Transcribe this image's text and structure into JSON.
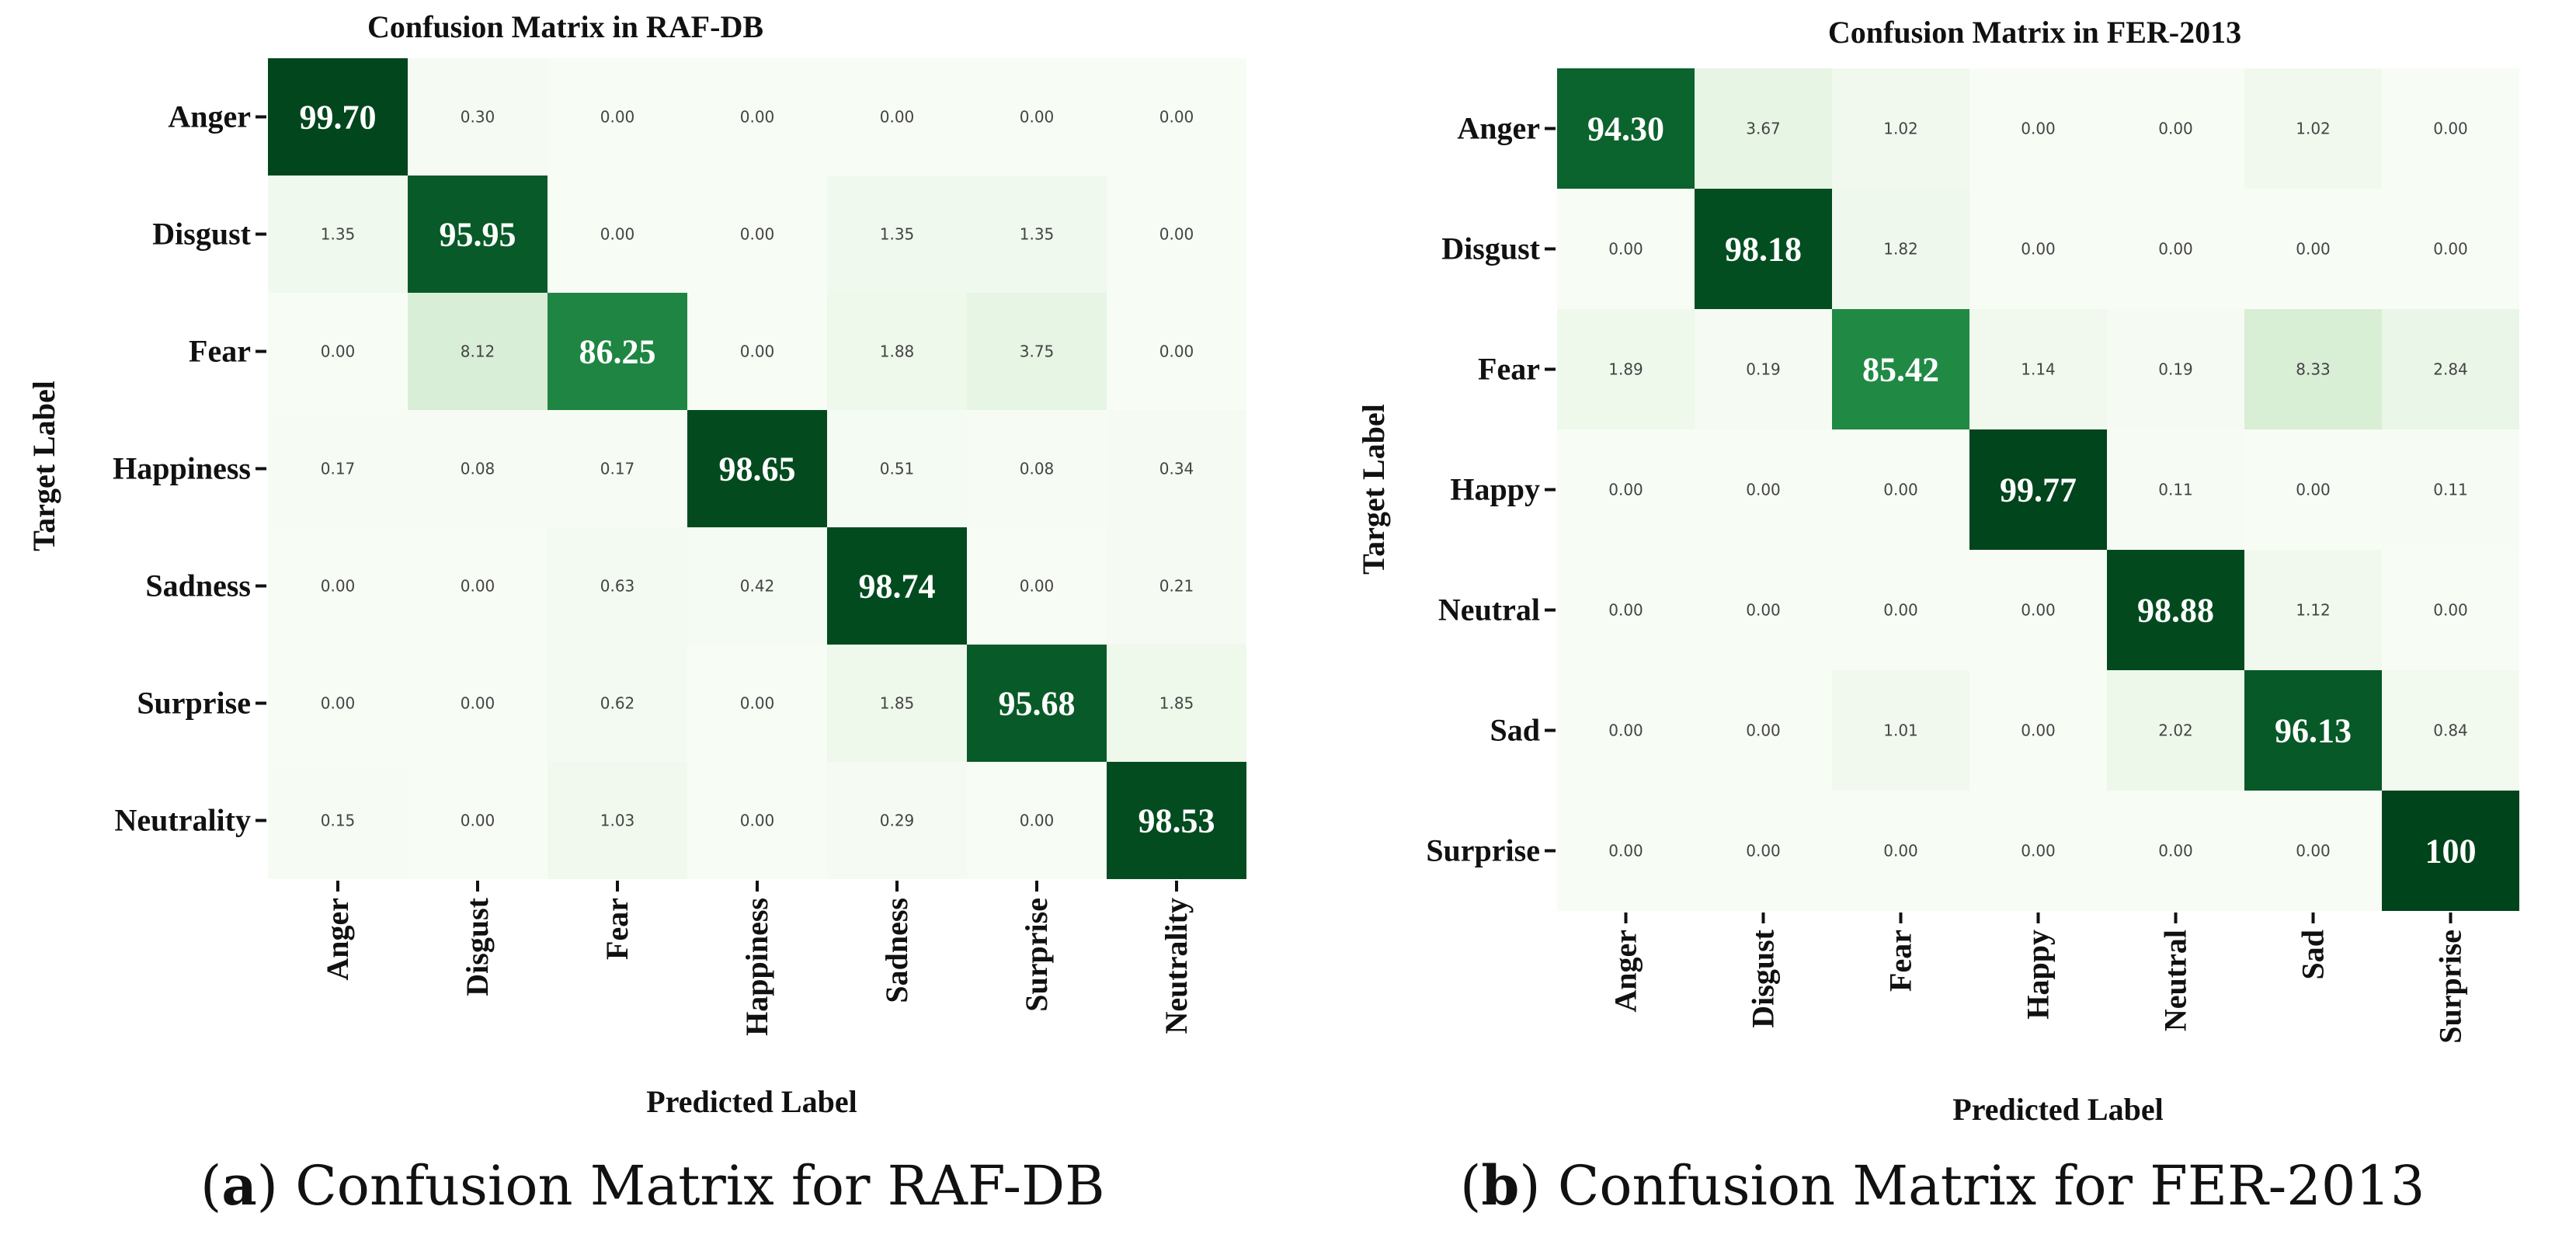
{
  "chart_data": [
    {
      "type": "heatmap",
      "title": "Confusion Matrix in RAF-DB",
      "xlabel": "Predicted Label",
      "ylabel": "Target Label",
      "row_labels": [
        "Anger",
        "Disgust",
        "Fear",
        "Happiness",
        "Sadness",
        "Surprise",
        "Neutrality"
      ],
      "col_labels": [
        "Anger",
        "Disgust",
        "Fear",
        "Happiness",
        "Sadness",
        "Surprise",
        "Neutrality"
      ],
      "cells": [
        [
          "99.70",
          "0.30",
          "0.00",
          "0.00",
          "0.00",
          "0.00",
          "0.00"
        ],
        [
          "1.35",
          "95.95",
          "0.00",
          "0.00",
          "1.35",
          "1.35",
          "0.00"
        ],
        [
          "0.00",
          "8.12",
          "86.25",
          "0.00",
          "1.88",
          "3.75",
          "0.00"
        ],
        [
          "0.17",
          "0.08",
          "0.17",
          "98.65",
          "0.51",
          "0.08",
          "0.34"
        ],
        [
          "0.00",
          "0.00",
          "0.63",
          "0.42",
          "98.74",
          "0.00",
          "0.21"
        ],
        [
          "0.00",
          "0.00",
          "0.62",
          "0.00",
          "1.85",
          "95.68",
          "1.85"
        ],
        [
          "0.15",
          "0.00",
          "1.03",
          "0.00",
          "0.29",
          "0.00",
          "98.53"
        ]
      ],
      "caption_letter": "a",
      "caption_text": "Confusion Matrix for RAF-DB",
      "colors": {
        "low": "#f7fcf5",
        "high": "#00441b"
      }
    },
    {
      "type": "heatmap",
      "title": "Confusion Matrix in FER-2013",
      "xlabel": "Predicted Label",
      "ylabel": "Target Label",
      "row_labels": [
        "Anger",
        "Disgust",
        "Fear",
        "Happy",
        "Neutral",
        "Sad",
        "Surprise"
      ],
      "col_labels": [
        "Anger",
        "Disgust",
        "Fear",
        "Happy",
        "Neutral",
        "Sad",
        "Surprise"
      ],
      "cells": [
        [
          "94.30",
          "3.67",
          "1.02",
          "0.00",
          "0.00",
          "1.02",
          "0.00"
        ],
        [
          "0.00",
          "98.18",
          "1.82",
          "0.00",
          "0.00",
          "0.00",
          "0.00"
        ],
        [
          "1.89",
          "0.19",
          "85.42",
          "1.14",
          "0.19",
          "8.33",
          "2.84"
        ],
        [
          "0.00",
          "0.00",
          "0.00",
          "99.77",
          "0.11",
          "0.00",
          "0.11"
        ],
        [
          "0.00",
          "0.00",
          "0.00",
          "0.00",
          "98.88",
          "1.12",
          "0.00"
        ],
        [
          "0.00",
          "0.00",
          "1.01",
          "0.00",
          "2.02",
          "96.13",
          "0.84"
        ],
        [
          "0.00",
          "0.00",
          "0.00",
          "0.00",
          "0.00",
          "0.00",
          "100"
        ]
      ],
      "caption_letter": "b",
      "caption_text": "Confusion Matrix for FER-2013",
      "colors": {
        "low": "#f7fcf5",
        "high": "#00441b"
      }
    }
  ]
}
